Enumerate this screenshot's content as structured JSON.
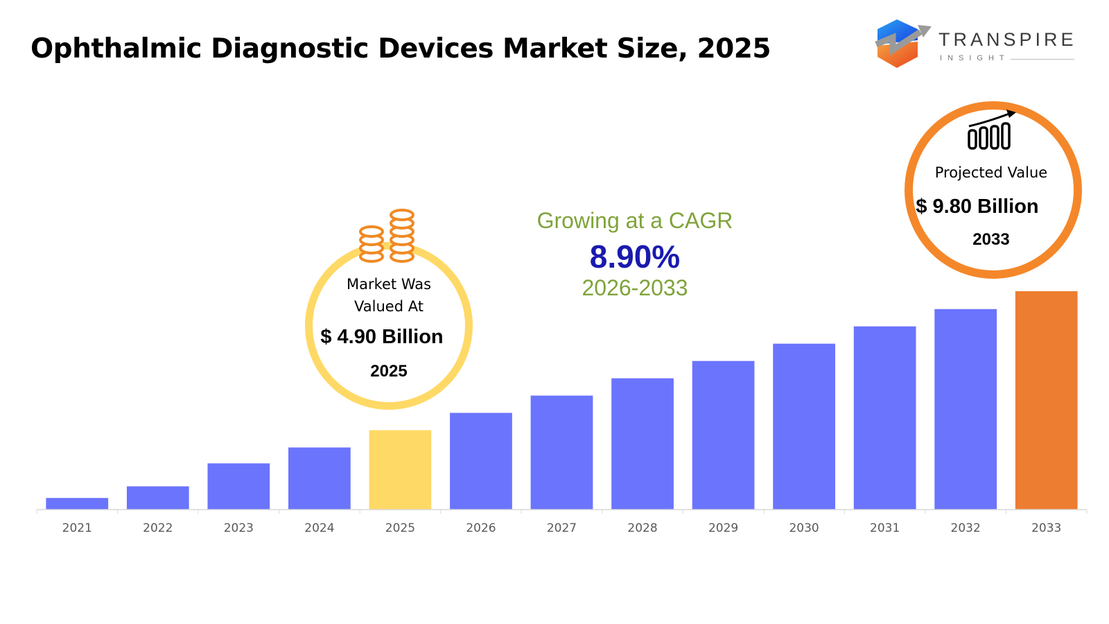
{
  "title": "Ophthalmic Diagnostic Devices Market Size, 2025",
  "logo": {
    "name": "TRANSPIRE",
    "sub": "INSIGHT"
  },
  "cagr": {
    "label": "Growing at a CAGR",
    "value": "8.90%",
    "period": "2026-2033",
    "label_color": "#7FA33A",
    "value_color": "#1A1AAE"
  },
  "callout_2025": {
    "line1": "Market Was",
    "line2": "Valued At",
    "value": "$ 4.90 Billion",
    "year": "2025",
    "icon": "coins-icon",
    "ring_color": "#FFD966"
  },
  "callout_2033": {
    "label": "Projected Value",
    "value": "$ 9.80 Billion",
    "year": "2033",
    "icon": "bar-chart-growth-icon",
    "ring_color": "#F4872A"
  },
  "chart_data": {
    "type": "bar",
    "title": "Ophthalmic Diagnostic Devices Market Size, 2025",
    "categories": [
      "2021",
      "2022",
      "2023",
      "2024",
      "2025",
      "2026",
      "2027",
      "2028",
      "2029",
      "2030",
      "2031",
      "2032",
      "2033"
    ],
    "values": [
      2.51,
      2.92,
      3.73,
      4.29,
      4.9,
      5.51,
      6.12,
      6.73,
      7.34,
      7.95,
      8.56,
      9.17,
      9.8
    ],
    "unit": "USD Billion",
    "xlabel": "",
    "ylabel": "",
    "ylim": [
      2.1,
      10
    ],
    "grid": false,
    "legend": "none",
    "colors": {
      "default": "#6B74FD",
      "2025": "#FFD966",
      "2033": "#ED7D31"
    }
  }
}
